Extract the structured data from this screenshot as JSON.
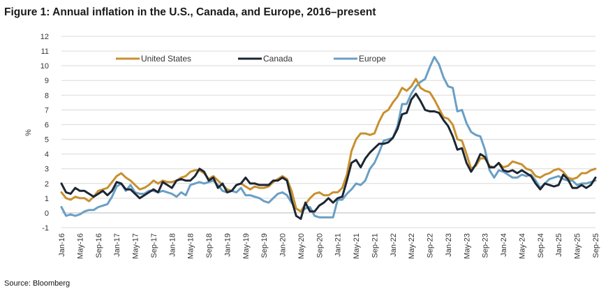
{
  "figure_title": "Figure 1: Annual inflation in the U.S., Canada, and Europe, 2016–present",
  "source": "Source: Bloomberg",
  "colors": {
    "united_states": "#C8902F",
    "canada": "#1C2633",
    "europe": "#6A9FC4",
    "grid": "#D9D9D9"
  },
  "chart_data": {
    "type": "line",
    "title": "Annual inflation in the U.S., Canada, and Europe, 2016–present",
    "xlabel": "",
    "ylabel": "%",
    "ylim": [
      -1,
      12
    ],
    "yticks": [
      -1,
      0,
      1,
      2,
      3,
      4,
      5,
      6,
      7,
      8,
      9,
      10,
      11,
      12
    ],
    "grid": true,
    "legend": "top",
    "x_start": "Jan-16",
    "x_end": "Sep-25",
    "x_tick_labels": [
      "Jan-16",
      "May-16",
      "Sep-16",
      "Jan-17",
      "May-17",
      "Sep-17",
      "Jan-18",
      "May-18",
      "Sep-18",
      "Jan-19",
      "May-19",
      "Sep-19",
      "Jan-20",
      "May-20",
      "Sep-20",
      "Jan-21",
      "May-21",
      "Sep-21",
      "Jan-22",
      "May-22",
      "Sep-22",
      "Jan-23",
      "May-23",
      "Sep-23",
      "Jan-24",
      "May-24",
      "Sep-24",
      "Jan-25",
      "May-25",
      "Sep-25"
    ],
    "series": [
      {
        "name": "United States",
        "values": [
          1.4,
          1.0,
          0.9,
          1.1,
          1.0,
          1.0,
          0.8,
          1.1,
          1.5,
          1.6,
          1.7,
          2.1,
          2.5,
          2.7,
          2.4,
          2.2,
          1.9,
          1.6,
          1.7,
          1.9,
          2.2,
          2.0,
          2.2,
          2.1,
          2.1,
          2.2,
          2.4,
          2.5,
          2.8,
          2.9,
          2.9,
          2.7,
          2.3,
          2.5,
          2.2,
          1.9,
          1.6,
          1.5,
          1.9,
          2.0,
          1.8,
          1.6,
          1.8,
          1.7,
          1.7,
          1.8,
          2.1,
          2.3,
          2.5,
          2.3,
          1.5,
          0.3,
          0.1,
          0.6,
          1.0,
          1.3,
          1.4,
          1.2,
          1.2,
          1.4,
          1.4,
          1.7,
          2.6,
          4.2,
          5.0,
          5.4,
          5.4,
          5.3,
          5.4,
          6.2,
          6.8,
          7.0,
          7.5,
          7.9,
          8.5,
          8.3,
          8.6,
          9.1,
          8.5,
          8.3,
          8.2,
          7.7,
          7.1,
          6.5,
          6.4,
          6.0,
          5.0,
          4.9,
          4.0,
          3.0,
          3.2,
          3.7,
          3.7,
          3.2,
          3.1,
          3.4,
          3.1,
          3.2,
          3.5,
          3.4,
          3.3,
          3.0,
          2.9,
          2.5,
          2.4,
          2.6,
          2.7,
          2.9,
          3.0,
          2.8,
          2.4,
          2.3,
          2.4,
          2.7,
          2.7,
          2.9,
          3.0
        ],
        "color": "#C8902F"
      },
      {
        "name": "Canada",
        "values": [
          2.0,
          1.4,
          1.3,
          1.7,
          1.5,
          1.5,
          1.3,
          1.1,
          1.3,
          1.5,
          1.2,
          1.5,
          2.1,
          2.0,
          1.6,
          1.6,
          1.3,
          1.0,
          1.2,
          1.4,
          1.6,
          1.4,
          2.1,
          1.9,
          1.7,
          2.2,
          2.3,
          2.2,
          2.2,
          2.5,
          3.0,
          2.8,
          2.2,
          2.4,
          1.7,
          2.0,
          1.4,
          1.5,
          1.9,
          2.0,
          2.4,
          2.0,
          2.0,
          1.9,
          1.9,
          1.9,
          2.2,
          2.2,
          2.4,
          2.2,
          0.9,
          -0.2,
          -0.4,
          0.7,
          0.1,
          0.1,
          0.5,
          0.7,
          1.0,
          0.7,
          1.0,
          1.1,
          2.2,
          3.4,
          3.6,
          3.1,
          3.7,
          4.1,
          4.4,
          4.7,
          4.7,
          4.8,
          5.1,
          5.7,
          6.7,
          6.8,
          7.7,
          8.1,
          7.6,
          7.0,
          6.9,
          6.9,
          6.8,
          6.3,
          5.9,
          5.2,
          4.3,
          4.4,
          3.4,
          2.8,
          3.3,
          4.0,
          3.8,
          3.1,
          3.1,
          3.4,
          2.9,
          2.8,
          2.9,
          2.7,
          2.9,
          2.7,
          2.5,
          2.0,
          1.6,
          2.0,
          1.9,
          1.8,
          1.9,
          2.6,
          2.3,
          1.7,
          1.7,
          1.9,
          1.7,
          1.9,
          2.4
        ],
        "color": "#1C2633"
      },
      {
        "name": "Europe",
        "values": [
          0.4,
          -0.2,
          -0.1,
          -0.2,
          -0.1,
          0.1,
          0.2,
          0.2,
          0.4,
          0.5,
          0.6,
          1.1,
          1.8,
          2.0,
          1.5,
          1.9,
          1.4,
          1.3,
          1.3,
          1.5,
          1.5,
          1.4,
          1.5,
          1.4,
          1.3,
          1.1,
          1.4,
          1.2,
          1.9,
          2.0,
          2.1,
          2.0,
          2.1,
          2.2,
          1.9,
          1.5,
          1.4,
          1.5,
          1.4,
          1.7,
          1.2,
          1.2,
          1.1,
          1.0,
          0.8,
          0.7,
          1.0,
          1.3,
          1.4,
          1.2,
          0.7,
          0.3,
          0.1,
          0.3,
          0.4,
          -0.2,
          -0.3,
          -0.3,
          -0.3,
          -0.3,
          0.9,
          0.9,
          1.3,
          1.6,
          2.0,
          1.9,
          2.2,
          3.0,
          3.4,
          4.1,
          4.9,
          5.0,
          5.1,
          5.9,
          7.4,
          7.4,
          8.1,
          8.6,
          8.9,
          9.1,
          9.9,
          10.6,
          10.1,
          9.2,
          8.6,
          8.5,
          6.9,
          7.0,
          6.1,
          5.5,
          5.3,
          5.2,
          4.3,
          2.9,
          2.4,
          2.9,
          2.8,
          2.6,
          2.4,
          2.4,
          2.6,
          2.5,
          2.6,
          2.2,
          1.7,
          2.0,
          2.3,
          2.4,
          2.5,
          2.3,
          2.2,
          2.2,
          1.9,
          2.0,
          2.0,
          2.1,
          2.2
        ],
        "color": "#6A9FC4"
      }
    ]
  }
}
